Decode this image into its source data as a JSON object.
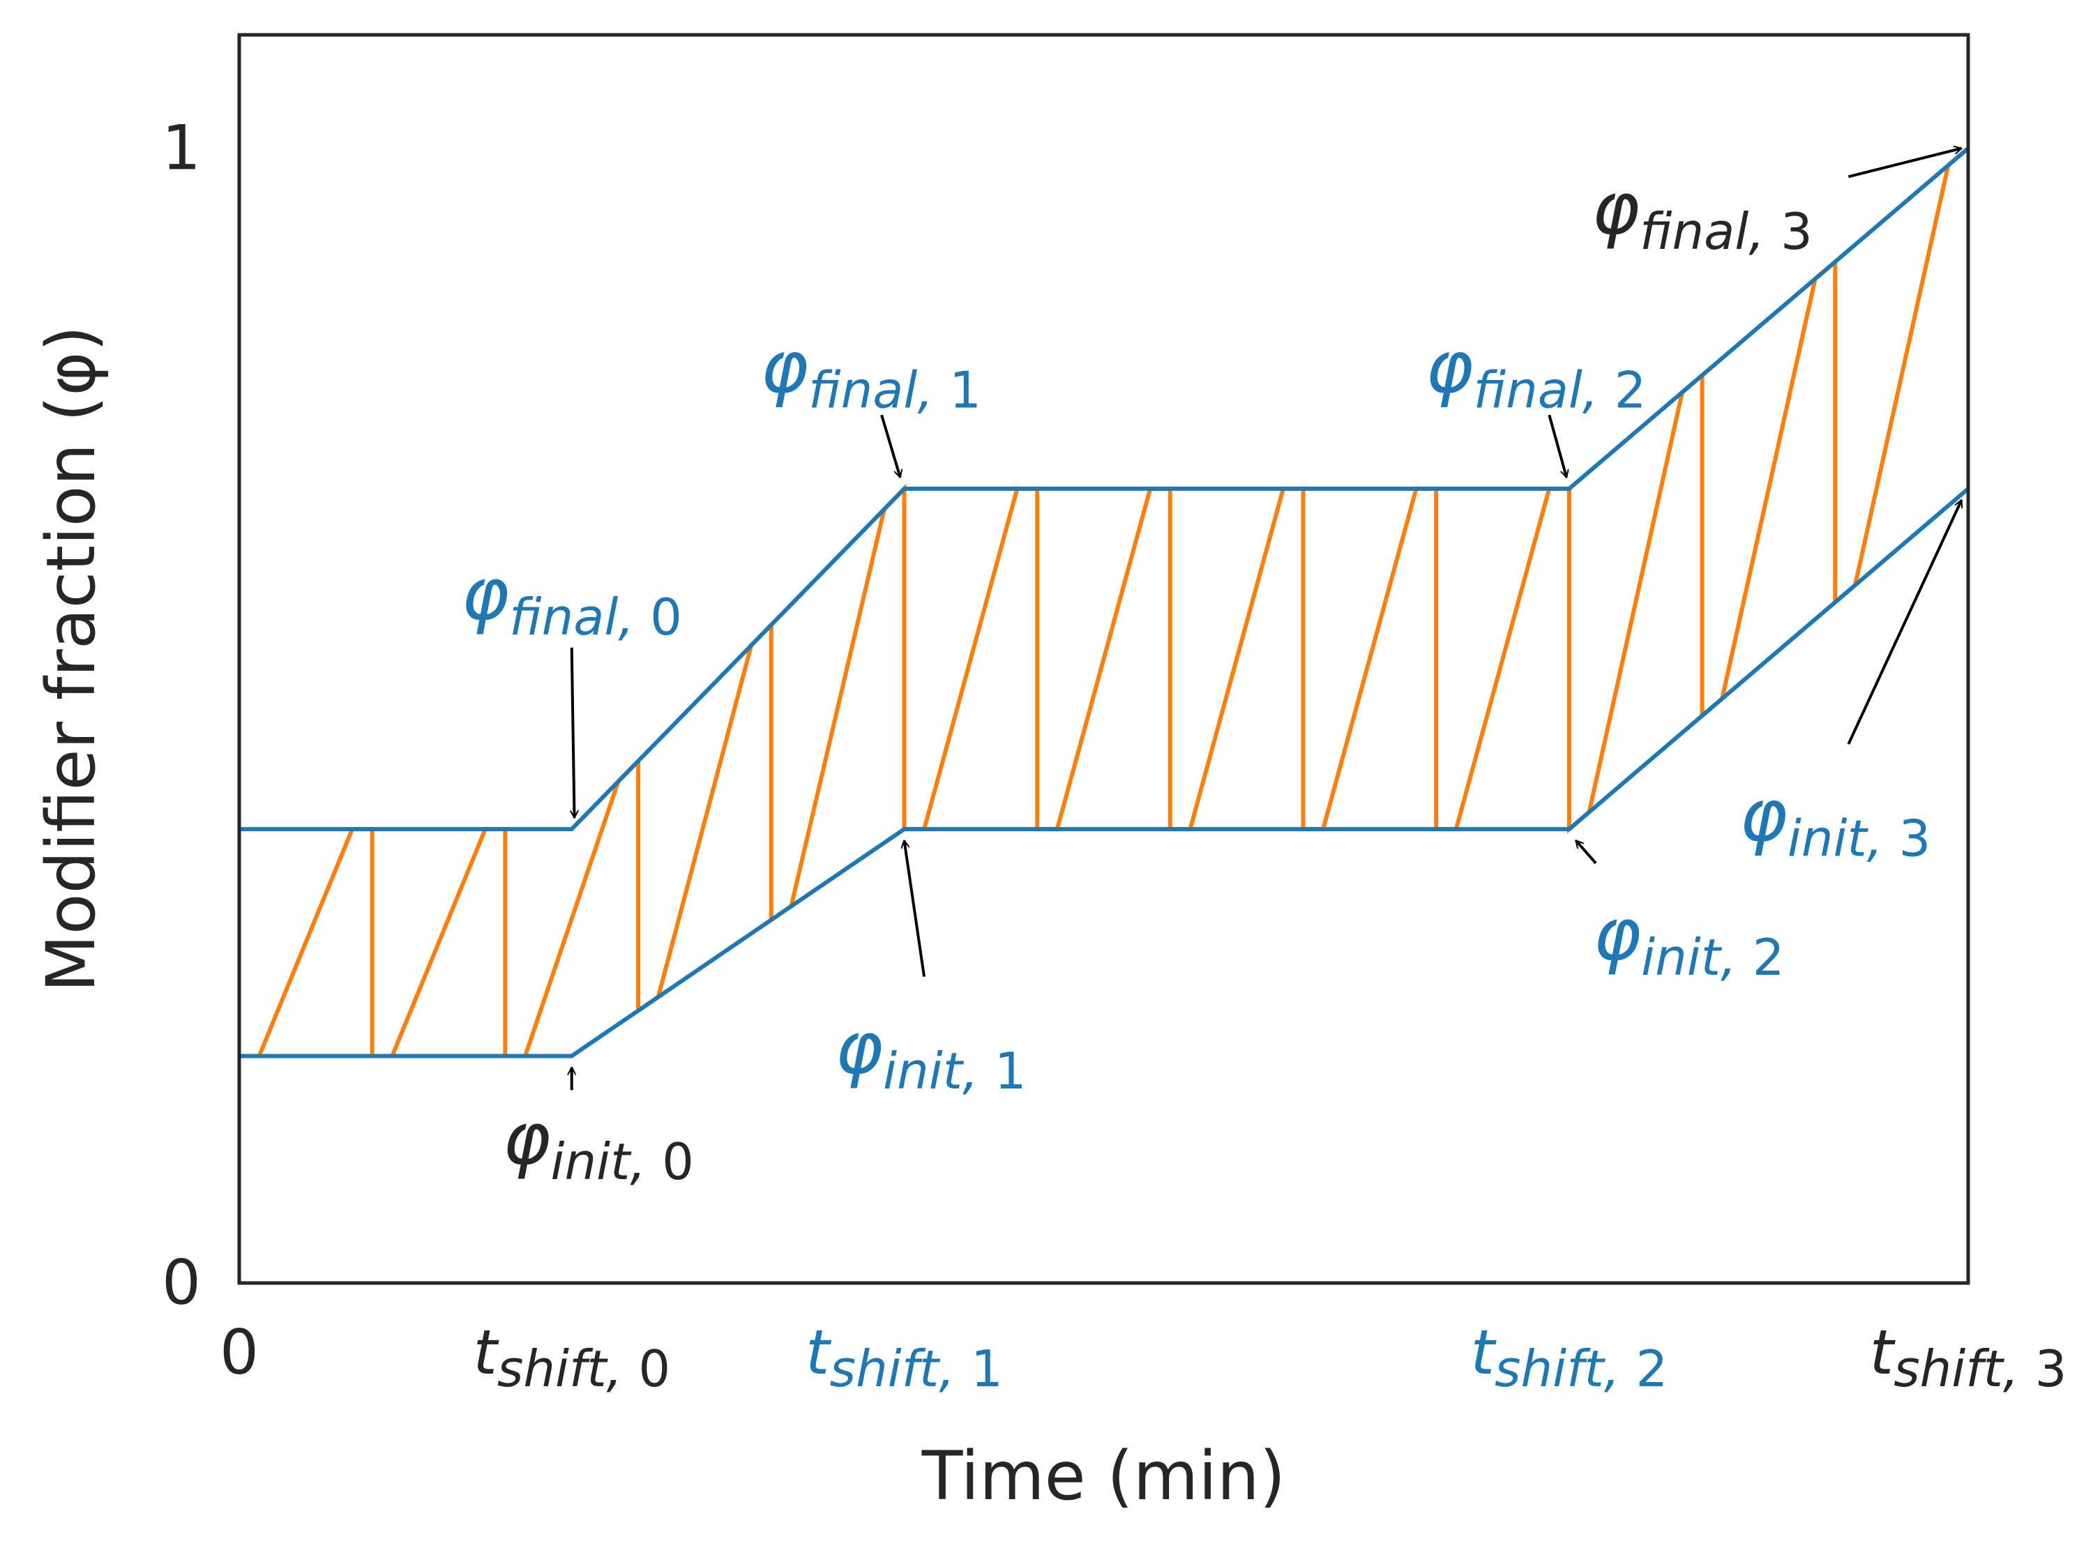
{
  "chart_data": {
    "type": "line",
    "xlabel": "Time (min)",
    "ylabel": "Modifier fraction (φ)",
    "xlim": [
      0,
      13
    ],
    "ylim": [
      0,
      1.1
    ],
    "grid": false,
    "colors": {
      "boundary": "#1f77b4",
      "sawtooth": "#ff7f0e",
      "axis": "#262626",
      "arrow": "#000000",
      "label_black": "#262626",
      "label_blue": "#1f77b4"
    },
    "x_ticks": [
      {
        "value": 0,
        "main": "0",
        "sub": "",
        "color": "black"
      },
      {
        "value": 2.5,
        "main": "t",
        "sub": "shift, 0",
        "color": "black"
      },
      {
        "value": 5,
        "main": "t",
        "sub": "shift, 1",
        "color": "blue"
      },
      {
        "value": 10,
        "main": "t",
        "sub": "shift, 2",
        "color": "blue"
      },
      {
        "value": 13,
        "main": "t",
        "sub": "shift, 3",
        "color": "black"
      }
    ],
    "y_ticks": [
      {
        "value": 0,
        "label": "0"
      },
      {
        "value": 1,
        "label": "1"
      }
    ],
    "series": [
      {
        "role": "upper",
        "x": [
          0,
          2.5,
          5,
          10,
          13
        ],
        "y": [
          0.4,
          0.4,
          0.7,
          0.7,
          1.0
        ]
      },
      {
        "role": "lower",
        "x": [
          0,
          2.5,
          5,
          10,
          13
        ],
        "y": [
          0.2,
          0.2,
          0.4,
          0.4,
          0.7
        ]
      }
    ],
    "sawtooth": {
      "starts": [
        0,
        1,
        2,
        3,
        4,
        5,
        6,
        7,
        8,
        9,
        10,
        11,
        12
      ],
      "hold": 0.15,
      "end": 13
    },
    "annotations": [
      {
        "main": "φ",
        "sub": "final, 0",
        "color": "blue",
        "text_at": [
          2.5,
          0.585
        ],
        "arrow_from": [
          2.5,
          0.56
        ],
        "arrow_to": [
          2.52,
          0.41
        ]
      },
      {
        "main": "φ",
        "sub": "init, 0",
        "color": "black",
        "text_at": [
          2.7,
          0.105
        ],
        "arrow_from": [
          2.5,
          0.17
        ],
        "arrow_to": [
          2.5,
          0.19
        ]
      },
      {
        "main": "φ",
        "sub": "final, 1",
        "color": "blue",
        "text_at": [
          4.75,
          0.785
        ],
        "arrow_from": [
          4.83,
          0.765
        ],
        "arrow_to": [
          4.97,
          0.71
        ]
      },
      {
        "main": "φ",
        "sub": "init, 1",
        "color": "blue",
        "text_at": [
          5.2,
          0.185
        ],
        "arrow_from": [
          5.15,
          0.27
        ],
        "arrow_to": [
          5.0,
          0.39
        ]
      },
      {
        "main": "φ",
        "sub": "final, 2",
        "color": "blue",
        "text_at": [
          9.75,
          0.785
        ],
        "arrow_from": [
          9.85,
          0.765
        ],
        "arrow_to": [
          9.98,
          0.71
        ]
      },
      {
        "main": "φ",
        "sub": "init, 2",
        "color": "blue",
        "text_at": [
          10.9,
          0.285
        ],
        "arrow_from": [
          10.2,
          0.37
        ],
        "arrow_to": [
          10.05,
          0.39
        ]
      },
      {
        "main": "φ",
        "sub": "final, 3",
        "color": "black",
        "text_at": [
          11.0,
          0.925
        ],
        "arrow_from": [
          12.1,
          0.975
        ],
        "arrow_to": [
          12.95,
          1.0
        ]
      },
      {
        "main": "φ",
        "sub": "init, 3",
        "color": "blue",
        "text_at": [
          12.0,
          0.39
        ],
        "arrow_from": [
          12.1,
          0.475
        ],
        "arrow_to": [
          12.95,
          0.69
        ]
      }
    ]
  }
}
